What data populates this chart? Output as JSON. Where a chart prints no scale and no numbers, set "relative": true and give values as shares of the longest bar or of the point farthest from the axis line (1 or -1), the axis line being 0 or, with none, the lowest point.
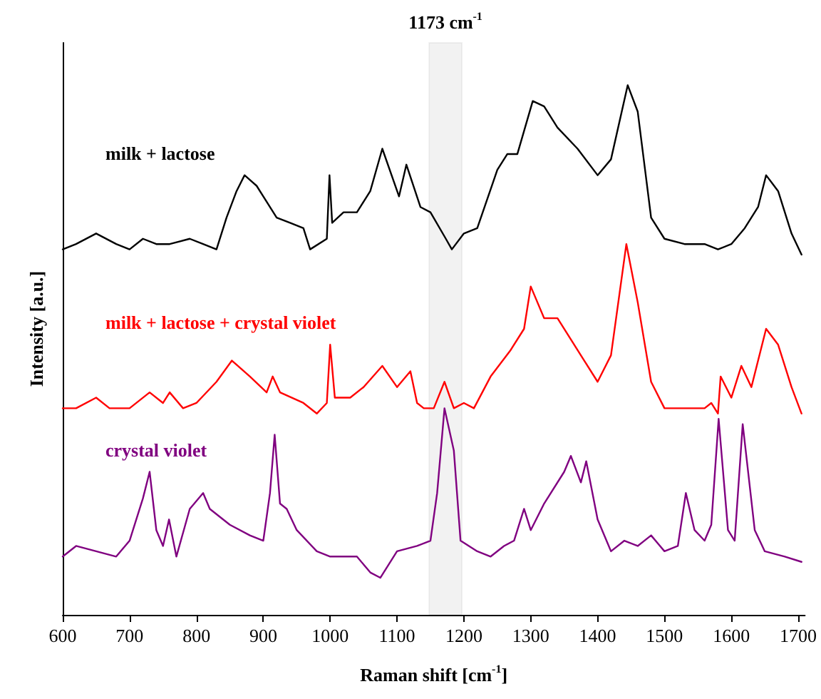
{
  "chart_data": {
    "type": "line",
    "relative": true,
    "xlabel": "Raman shift [cm$^{-1}$]",
    "ylabel": "Intensity [a.u.]",
    "xlim": [
      600,
      1710
    ],
    "xticks": [
      600,
      700,
      800,
      900,
      1000,
      1100,
      1200,
      1300,
      1400,
      1500,
      1600,
      1700
    ],
    "grid": false,
    "legend": false,
    "marker": "none",
    "line_style": "solid",
    "bands": [
      {
        "axis": "x",
        "from": 1148,
        "to": 1197,
        "label": "1173 cm$^{-1}$",
        "color": "#000000"
      }
    ],
    "series": [
      {
        "name": "milk + lactose",
        "color": "#000000",
        "x": [
          600,
          620,
          650,
          680,
          700,
          720,
          740,
          760,
          790,
          810,
          830,
          845,
          860,
          872,
          890,
          900,
          920,
          940,
          960,
          970,
          995,
          999,
          1003,
          1020,
          1040,
          1060,
          1078,
          1103,
          1114,
          1135,
          1150,
          1173,
          1182,
          1200,
          1220,
          1250,
          1265,
          1280,
          1303,
          1320,
          1340,
          1370,
          1400,
          1420,
          1445,
          1460,
          1480,
          1500,
          1530,
          1560,
          1580,
          1600,
          1620,
          1640,
          1652,
          1670,
          1690,
          1705
        ],
        "values": [
          0.69,
          0.7,
          0.72,
          0.7,
          0.69,
          0.71,
          0.7,
          0.7,
          0.71,
          0.7,
          0.69,
          0.75,
          0.8,
          0.83,
          0.81,
          0.79,
          0.75,
          0.74,
          0.73,
          0.69,
          0.71,
          0.83,
          0.74,
          0.76,
          0.76,
          0.8,
          0.88,
          0.79,
          0.85,
          0.77,
          0.76,
          0.71,
          0.69,
          0.72,
          0.73,
          0.84,
          0.87,
          0.87,
          0.97,
          0.96,
          0.92,
          0.88,
          0.83,
          0.86,
          1,
          0.95,
          0.75,
          0.71,
          0.7,
          0.7,
          0.69,
          0.7,
          0.73,
          0.77,
          0.83,
          0.8,
          0.72,
          0.68
        ]
      },
      {
        "name": "milk + lactose + crystal violet",
        "color": "#ff0000",
        "x": [
          600,
          620,
          650,
          670,
          700,
          730,
          750,
          760,
          780,
          800,
          830,
          853,
          880,
          905,
          914,
          925,
          960,
          980,
          995,
          1000,
          1007,
          1030,
          1050,
          1078,
          1100,
          1120,
          1130,
          1140,
          1155,
          1171,
          1185,
          1200,
          1215,
          1240,
          1270,
          1290,
          1300,
          1320,
          1340,
          1360,
          1380,
          1400,
          1420,
          1443,
          1460,
          1480,
          1500,
          1530,
          1560,
          1570,
          1580,
          1584,
          1600,
          1615,
          1630,
          1652,
          1670,
          1690,
          1705
        ],
        "values": [
          0.39,
          0.39,
          0.41,
          0.39,
          0.39,
          0.42,
          0.4,
          0.42,
          0.39,
          0.4,
          0.44,
          0.48,
          0.45,
          0.42,
          0.45,
          0.42,
          0.4,
          0.38,
          0.4,
          0.51,
          0.41,
          0.41,
          0.43,
          0.47,
          0.43,
          0.46,
          0.4,
          0.39,
          0.39,
          0.44,
          0.39,
          0.4,
          0.39,
          0.45,
          0.5,
          0.54,
          0.62,
          0.56,
          0.56,
          0.52,
          0.48,
          0.44,
          0.49,
          0.7,
          0.59,
          0.44,
          0.39,
          0.39,
          0.39,
          0.4,
          0.38,
          0.45,
          0.41,
          0.47,
          0.43,
          0.54,
          0.51,
          0.43,
          0.38
        ]
      },
      {
        "name": "crystal violet",
        "color": "#800080",
        "x": [
          600,
          620,
          650,
          680,
          700,
          720,
          730,
          740,
          750,
          759,
          770,
          790,
          810,
          820,
          850,
          880,
          900,
          910,
          917,
          925,
          935,
          950,
          980,
          1000,
          1040,
          1060,
          1075,
          1100,
          1130,
          1150,
          1160,
          1171,
          1185,
          1195,
          1220,
          1240,
          1260,
          1275,
          1290,
          1300,
          1320,
          1350,
          1360,
          1375,
          1383,
          1400,
          1420,
          1440,
          1460,
          1480,
          1500,
          1520,
          1532,
          1545,
          1560,
          1570,
          1581,
          1595,
          1605,
          1617,
          1635,
          1650,
          1680,
          1705
        ],
        "values": [
          0.11,
          0.13,
          0.12,
          0.11,
          0.14,
          0.22,
          0.27,
          0.16,
          0.13,
          0.18,
          0.11,
          0.2,
          0.23,
          0.2,
          0.17,
          0.15,
          0.14,
          0.23,
          0.34,
          0.21,
          0.2,
          0.16,
          0.12,
          0.11,
          0.11,
          0.08,
          0.07,
          0.12,
          0.13,
          0.14,
          0.23,
          0.39,
          0.31,
          0.14,
          0.12,
          0.11,
          0.13,
          0.14,
          0.2,
          0.16,
          0.21,
          0.27,
          0.3,
          0.25,
          0.29,
          0.18,
          0.12,
          0.14,
          0.13,
          0.15,
          0.12,
          0.13,
          0.23,
          0.16,
          0.14,
          0.17,
          0.37,
          0.16,
          0.14,
          0.36,
          0.16,
          0.12,
          0.11,
          0.1
        ]
      }
    ]
  }
}
